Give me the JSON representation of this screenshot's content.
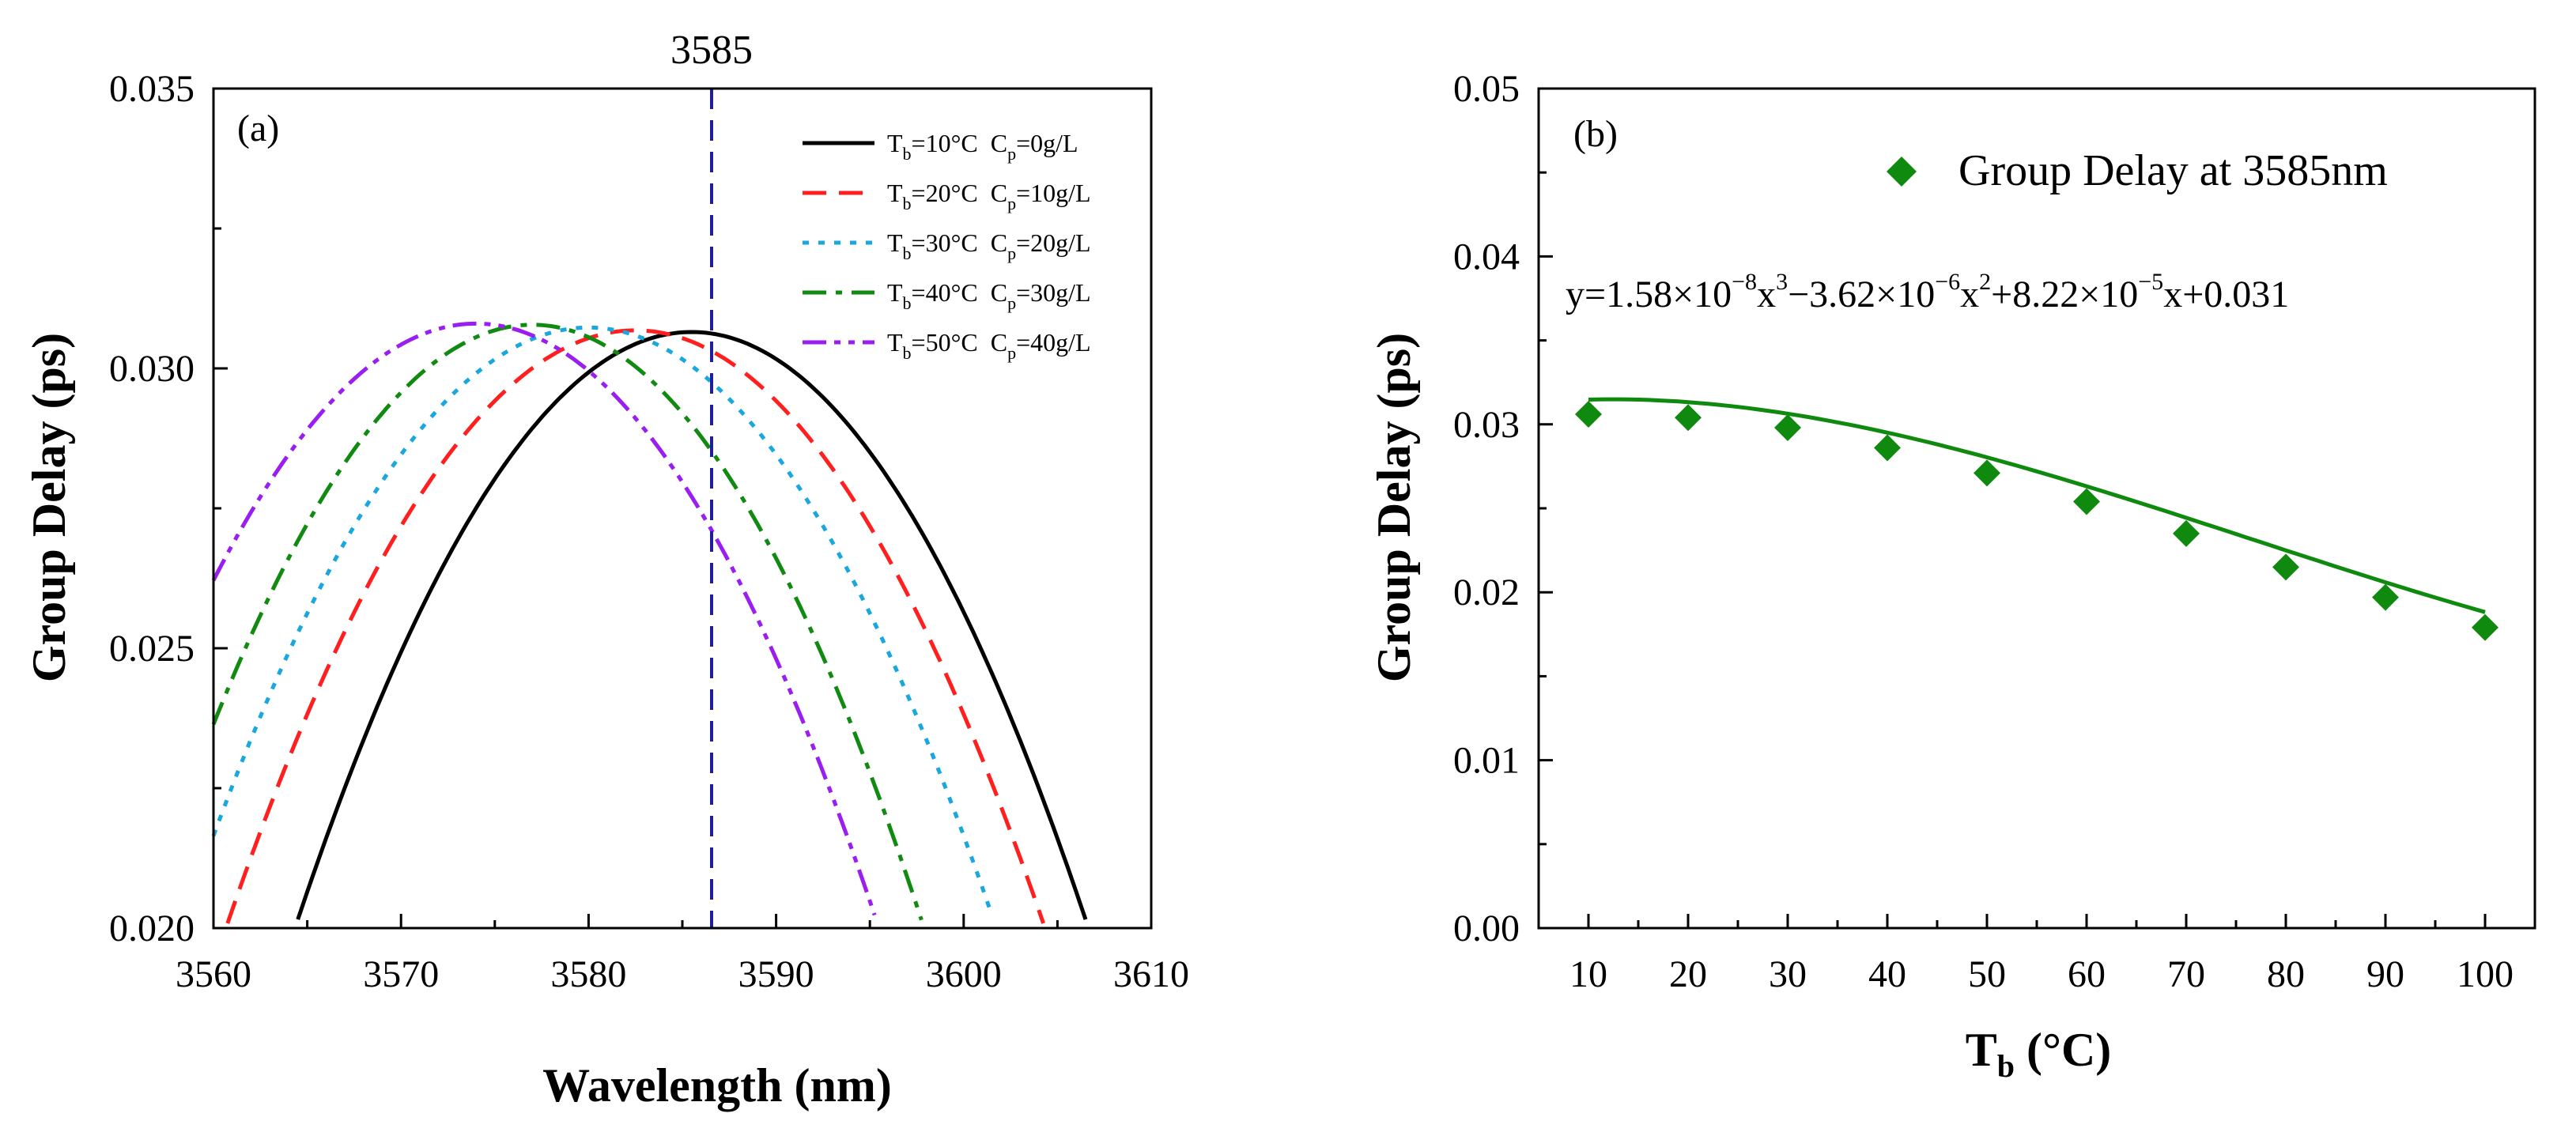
{
  "chart_data": [
    {
      "id": "a",
      "type": "line",
      "panel_label": "(a)",
      "xlabel": "Wavelength (nm)",
      "ylabel": "Group Delay (ps)",
      "xlim": [
        3560,
        3610
      ],
      "ylim": [
        0.02,
        0.035
      ],
      "xticks": [
        "3560",
        "3570",
        "3580",
        "3590",
        "3600",
        "3610"
      ],
      "yticks": [
        "0.020",
        "0.025",
        "0.030",
        "0.035"
      ],
      "reference_line": {
        "x": 3585,
        "label": "3585",
        "color": "#1f1f9e"
      },
      "legend_position": "top-right",
      "series": [
        {
          "t_label": "T",
          "t_sub": "b",
          "t_value": "=10°C",
          "c_label": "C",
          "c_sub": "p",
          "c_value": "=0g/L",
          "color": "#000000",
          "dash": "solid",
          "peak_x": 3585.5,
          "peak_y": 0.03065,
          "curvature": 2.38e-05
        },
        {
          "t_label": "T",
          "t_sub": "b",
          "t_value": "=20°C",
          "c_label": "C",
          "c_sub": "p",
          "c_value": "=10g/L",
          "color": "#ff1f1f",
          "dash": "dashed",
          "peak_x": 3582.5,
          "peak_y": 0.03068,
          "curvature": 2.24e-05
        },
        {
          "t_label": "T",
          "t_sub": "b",
          "t_value": "=30°C",
          "c_label": "C",
          "c_sub": "p",
          "c_value": "=20g/L",
          "color": "#1aa7e0",
          "dash": "dotted",
          "peak_x": 3580.0,
          "peak_y": 0.03073,
          "curvature": 2.27e-05
        },
        {
          "t_label": "T",
          "t_sub": "b",
          "t_value": "=40°C",
          "c_label": "C",
          "c_sub": "p",
          "c_value": "=30g/L",
          "color": "#118a11",
          "dash": "dashdot",
          "peak_x": 3577.0,
          "peak_y": 0.03078,
          "curvature": 2.47e-05
        },
        {
          "t_label": "T",
          "t_sub": "b",
          "t_value": "=50°C",
          "c_label": "C",
          "c_sub": "p",
          "c_value": "=40g/L",
          "color": "#9a1ef0",
          "dash": "dashdotdot",
          "peak_x": 3574.0,
          "peak_y": 0.0308,
          "curvature": 2.34e-05
        }
      ]
    },
    {
      "id": "b",
      "type": "scatter",
      "panel_label": "(b)",
      "xlabel_main": "T",
      "xlabel_sub": "b",
      "xlabel_rest": " (°C)",
      "ylabel": "Group Delay (ps)",
      "xlim": [
        5,
        105
      ],
      "ylim": [
        0.0,
        0.05
      ],
      "xticks": [
        "10",
        "20",
        "30",
        "40",
        "50",
        "60",
        "70",
        "80",
        "90",
        "100"
      ],
      "yticks": [
        "0.00",
        "0.01",
        "0.02",
        "0.03",
        "0.04",
        "0.05"
      ],
      "legend_position": "top-right",
      "legend_label": "Group Delay at 3585nm",
      "marker_color": "#0f8a0f",
      "fit_coefficients": {
        "a3": 1.58e-08,
        "a2": -3.62e-06,
        "a1": 8.22e-05,
        "a0": 0.031
      },
      "equation": {
        "p1": "y=1.58×10",
        "e1": "−8",
        "p2": "x",
        "e2": "3",
        "p3": "−3.62×10",
        "e3": "−6",
        "p4": "x",
        "e4": "2",
        "p5": "+8.22×10",
        "e5": "−5",
        "p6": "x+0.031"
      },
      "x": [
        10,
        20,
        30,
        40,
        50,
        60,
        70,
        80,
        90,
        100
      ],
      "y": [
        0.0306,
        0.0304,
        0.0298,
        0.0286,
        0.0271,
        0.0254,
        0.0235,
        0.0215,
        0.0197,
        0.0179
      ]
    }
  ]
}
